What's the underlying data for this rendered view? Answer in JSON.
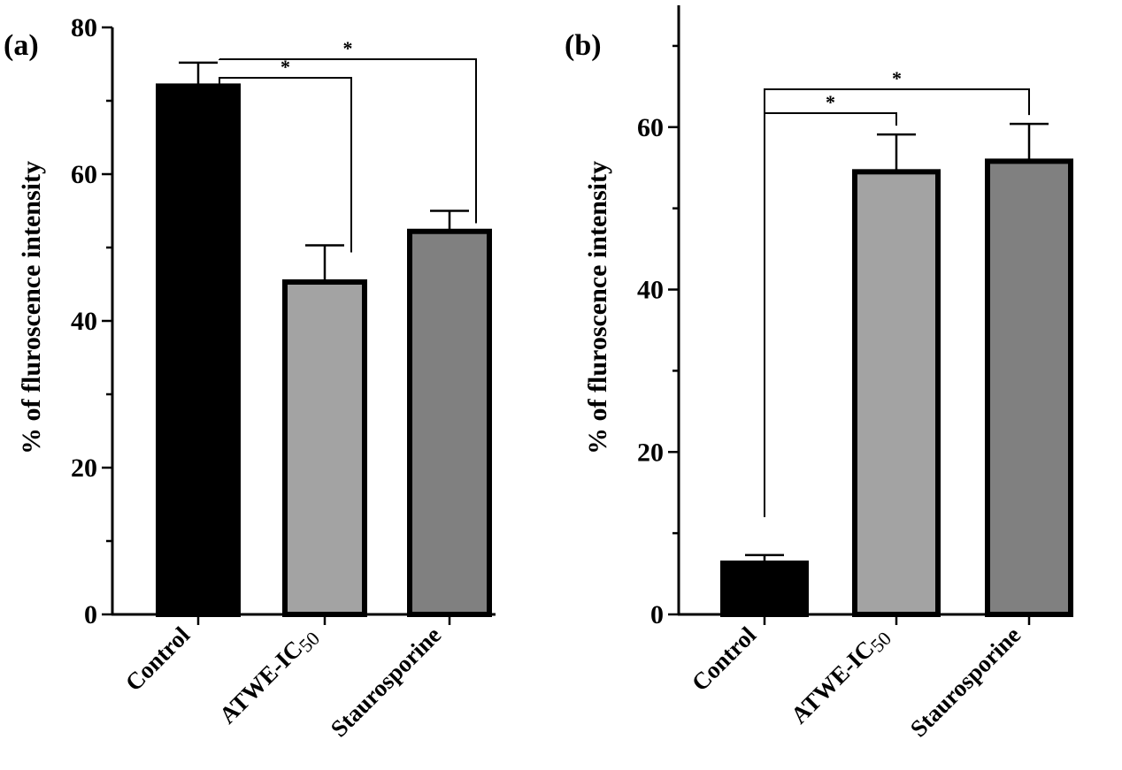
{
  "chart_data": [
    {
      "type": "bar",
      "panel": "(a)",
      "categories": [
        "Control",
        "ATWE-IC",
        "Staurosporine"
      ],
      "category_subscripts": [
        "",
        "50",
        ""
      ],
      "values": [
        72,
        45.3,
        52.2
      ],
      "errors": [
        3.2,
        5.0,
        2.8
      ],
      "fill_colors": [
        "#000000",
        "#a3a3a3",
        "#808080"
      ],
      "ylabel": "% of fluroscence intensity",
      "ylim": [
        0,
        80
      ],
      "yticks": [
        "0",
        "20",
        "40",
        "60",
        "80"
      ],
      "grid": false,
      "significance": [
        {
          "from": "Control",
          "to": "ATWE-IC",
          "label": "*"
        },
        {
          "from": "Control",
          "to": "Staurosporine",
          "label": "*"
        }
      ]
    },
    {
      "type": "bar",
      "panel": "(b)",
      "categories": [
        "Control",
        "ATWE-IC",
        "Staurosporine"
      ],
      "category_subscripts": [
        "",
        "50",
        ""
      ],
      "values": [
        6.3,
        54.5,
        55.8
      ],
      "errors": [
        1.0,
        4.6,
        4.6
      ],
      "fill_colors": [
        "#000000",
        "#a3a3a3",
        "#808080"
      ],
      "ylabel": "% of fluroscence intensity",
      "ylim": [
        0,
        75
      ],
      "yticks": [
        "0",
        "20",
        "40",
        "60"
      ],
      "grid": false,
      "significance": [
        {
          "from": "Control",
          "to": "ATWE-IC",
          "label": "*"
        },
        {
          "from": "Control",
          "to": "Staurosporine",
          "label": "*"
        }
      ]
    }
  ]
}
